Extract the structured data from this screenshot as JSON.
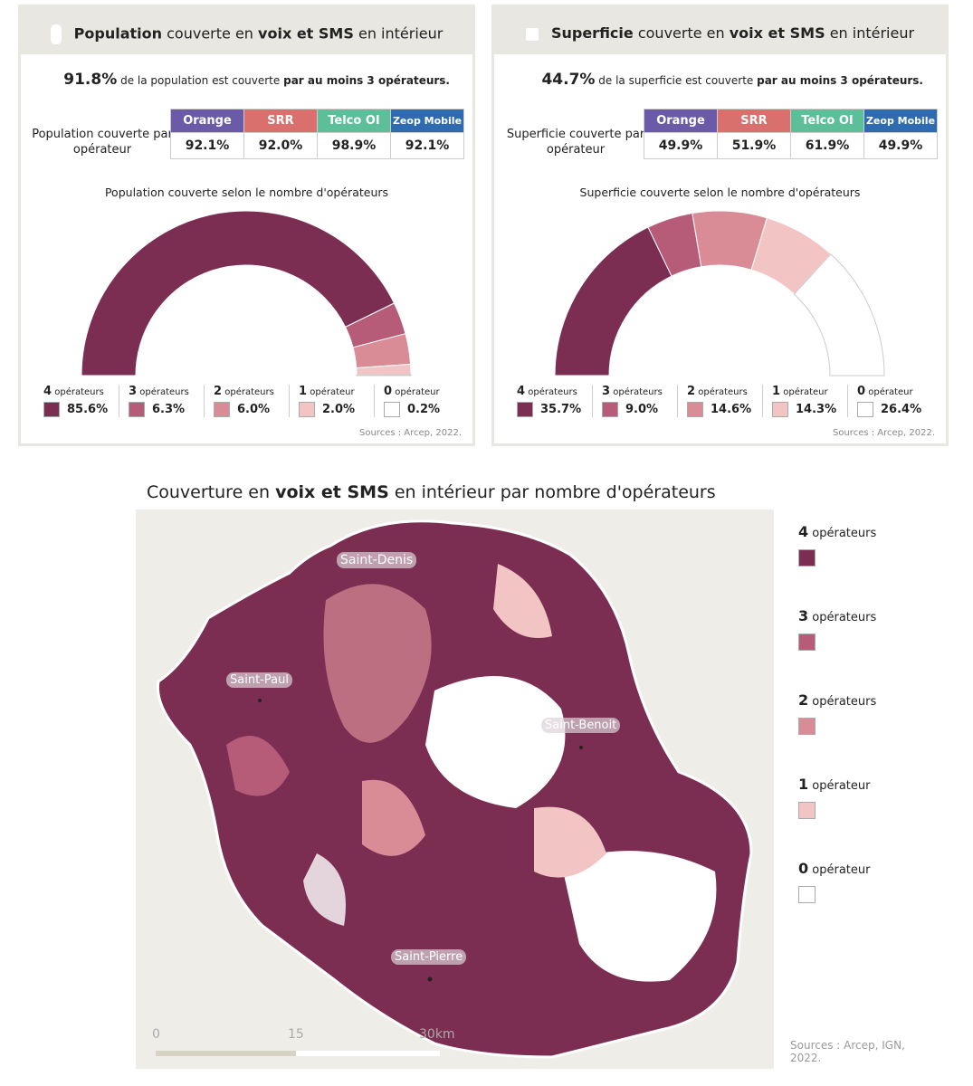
{
  "colors": {
    "op4": "#7b2d52",
    "op3": "#b65b78",
    "op2": "#d98c96",
    "op1": "#f3c4c4",
    "op0": "#ffffff",
    "Orange": "#6a5aa8",
    "SRR": "#d9706e",
    "Telco OI": "#5cbf9a",
    "Zeop Mobile": "#2f6bb0"
  },
  "operators": [
    "Orange",
    "SRR",
    "Telco OI",
    "Zeop Mobile"
  ],
  "chart_data": [
    {
      "type": "pie",
      "title_parts": [
        "Population",
        "couverte en",
        "voix et SMS",
        "en intérieur"
      ],
      "lead_value": "91.8%",
      "lead_text": "de la population est couverte",
      "lead_bold": "par au moins 3 opérateurs.",
      "row_label": "Population couverte par opérateur",
      "operator_values": [
        "92.1%",
        "92.0%",
        "98.9%",
        "92.1%"
      ],
      "subtitle": "Population couverte selon le nombre d'opérateurs",
      "categories": [
        {
          "n": "4",
          "label": "opérateurs",
          "value": 85.6,
          "text": "85.6%"
        },
        {
          "n": "3",
          "label": "opérateurs",
          "value": 6.3,
          "text": "6.3%"
        },
        {
          "n": "2",
          "label": "opérateurs",
          "value": 6.0,
          "text": "6.0%"
        },
        {
          "n": "1",
          "label": "opérateur",
          "value": 2.0,
          "text": "2.0%"
        },
        {
          "n": "0",
          "label": "opérateur",
          "value": 0.2,
          "text": "0.2%"
        }
      ],
      "source": "Sources : Arcep, 2022."
    },
    {
      "type": "pie",
      "title_parts": [
        "Superficie",
        "couverte en",
        "voix et SMS",
        "en intérieur"
      ],
      "lead_value": "44.7%",
      "lead_text": "de la superficie est couverte",
      "lead_bold": "par au moins 3 opérateurs.",
      "row_label": "Superficie couverte par opérateur",
      "operator_values": [
        "49.9%",
        "51.9%",
        "61.9%",
        "49.9%"
      ],
      "subtitle": "Superficie couverte selon le nombre d'opérateurs",
      "categories": [
        {
          "n": "4",
          "label": "opérateurs",
          "value": 35.7,
          "text": "35.7%"
        },
        {
          "n": "3",
          "label": "opérateurs",
          "value": 9.0,
          "text": "9.0%"
        },
        {
          "n": "2",
          "label": "opérateurs",
          "value": 14.6,
          "text": "14.6%"
        },
        {
          "n": "1",
          "label": "opérateur",
          "value": 14.3,
          "text": "14.3%"
        },
        {
          "n": "0",
          "label": "opérateur",
          "value": 26.4,
          "text": "26.4%"
        }
      ],
      "source": "Sources : Arcep, 2022."
    }
  ],
  "map": {
    "title_parts": [
      "Couverture en",
      "voix et SMS",
      "en intérieur par nombre d'opérateurs"
    ],
    "cities": [
      "Saint-Denis",
      "Saint-Paul",
      "Saint-Benoit",
      "Saint-Pierre"
    ],
    "scale": [
      "0",
      "15",
      "30km"
    ],
    "legend": [
      {
        "n": "4",
        "label": "opérateurs"
      },
      {
        "n": "3",
        "label": "opérateurs"
      },
      {
        "n": "2",
        "label": "opérateurs"
      },
      {
        "n": "1",
        "label": "opérateur"
      },
      {
        "n": "0",
        "label": "opérateur"
      }
    ],
    "source": "Sources : Arcep, IGN, 2022."
  }
}
